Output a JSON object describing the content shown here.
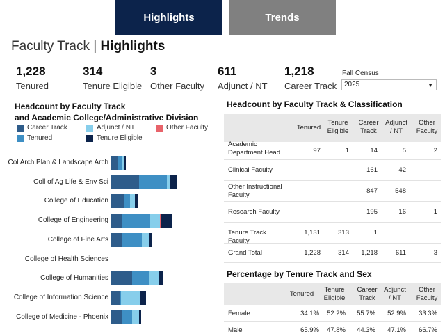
{
  "tabs": {
    "highlights": "Highlights",
    "trends": "Trends"
  },
  "page_title": {
    "prefix": "Faculty Track | ",
    "main": "Highlights"
  },
  "kpis": [
    {
      "value": "1,228",
      "label": "Tenured"
    },
    {
      "value": "314",
      "label": "Tenure Eligible"
    },
    {
      "value": "3",
      "label": "Other Faculty"
    },
    {
      "value": "611",
      "label": "Adjunct / NT"
    },
    {
      "value": "1,218",
      "label": "Career Track"
    }
  ],
  "census": {
    "label": "Fall Census",
    "selected": "2025",
    "arrow": "▼"
  },
  "left_chart": {
    "title_line1": "Headcount by Faculty Track",
    "title_line2": "and Academic College/Administrative Division",
    "legend": [
      {
        "label": "Career Track",
        "color": "#2e5c8a"
      },
      {
        "label": "Adjunct / NT",
        "color": "#87ceeb"
      },
      {
        "label": "Other Faculty",
        "color": "#e8636a"
      },
      {
        "label": "Tenured",
        "color": "#3e8fc4"
      },
      {
        "label": "Tenure Eligible",
        "color": "#0c234b"
      }
    ]
  },
  "chart_data": {
    "type": "bar",
    "orientation": "horizontal",
    "stacked": true,
    "title": "Headcount by Faculty Track and Academic College/Administrative Division",
    "categories": [
      "Col Arch Plan & Landscape Arch",
      "Coll of Ag Life & Env Sci",
      "College of Education",
      "College of Engineering",
      "College of Fine Arts",
      "College of Health Sciences",
      "College of Humanities",
      "College of Information Science",
      "College of Medicine - Phoenix"
    ],
    "series": [
      {
        "name": "Career Track",
        "color": "#2e5c8a",
        "values": [
          9,
          40,
          18,
          16,
          16,
          0,
          30,
          12,
          16
        ]
      },
      {
        "name": "Tenured",
        "color": "#3e8fc4",
        "values": [
          6,
          40,
          9,
          40,
          28,
          0,
          25,
          2,
          14
        ]
      },
      {
        "name": "Adjunct / NT",
        "color": "#87ceeb",
        "values": [
          4,
          4,
          7,
          14,
          10,
          0,
          14,
          28,
          10
        ]
      },
      {
        "name": "Other Faculty",
        "color": "#e8636a",
        "values": [
          0,
          0,
          0,
          2,
          0,
          0,
          0,
          0,
          0
        ]
      },
      {
        "name": "Tenure Eligible",
        "color": "#0c234b",
        "values": [
          2,
          10,
          5,
          16,
          5,
          0,
          5,
          8,
          3
        ]
      }
    ],
    "xlim": [
      0,
      100
    ]
  },
  "table1": {
    "title": "Headcount by Faculty Track & Classification",
    "headers": [
      "Tenured",
      "Tenure Eligible",
      "Career Track",
      "Adjunct / NT",
      "Other Faculty"
    ],
    "rows": [
      {
        "label": "Academic Department Head",
        "values": [
          "97",
          "1",
          "14",
          "5",
          "2"
        ]
      },
      {
        "label": "Clinical Faculty",
        "values": [
          "",
          "",
          "161",
          "42",
          ""
        ]
      },
      {
        "label": "Other Instructional Faculty",
        "values": [
          "",
          "",
          "847",
          "548",
          ""
        ]
      },
      {
        "label": "Research Faculty",
        "values": [
          "",
          "",
          "195",
          "16",
          "1"
        ]
      },
      {
        "label": "Tenure Track Faculty",
        "values": [
          "1,131",
          "313",
          "1",
          "",
          ""
        ]
      },
      {
        "label": "Grand Total",
        "values": [
          "1,228",
          "314",
          "1,218",
          "611",
          "3"
        ]
      }
    ]
  },
  "table2": {
    "title": "Percentage by Tenure Track and Sex",
    "headers": [
      "Tenured",
      "Tenure Eligible",
      "Career Track",
      "Adjunct / NT",
      "Other Faculty"
    ],
    "rows": [
      {
        "label": "Female",
        "values": [
          "34.1%",
          "52.2%",
          "55.7%",
          "52.9%",
          "33.3%"
        ]
      },
      {
        "label": "Male",
        "values": [
          "65.9%",
          "47.8%",
          "44.3%",
          "47.1%",
          "66.7%"
        ]
      }
    ]
  }
}
